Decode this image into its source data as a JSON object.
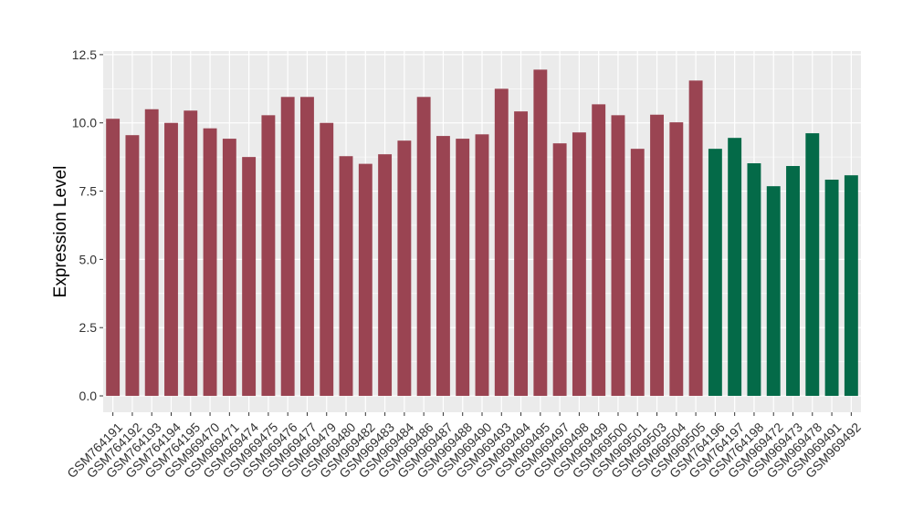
{
  "chart_data": {
    "type": "bar",
    "title": "",
    "xlabel": "",
    "ylabel": "Expression Level",
    "ylim": [
      0,
      12.5
    ],
    "yticks": [
      0.0,
      2.5,
      5.0,
      7.5,
      10.0,
      12.5
    ],
    "ytick_labels": [
      "0.0",
      "2.5",
      "5.0",
      "7.5",
      "10.0",
      "12.5"
    ],
    "grid": true,
    "legend": "none",
    "background_color": "#EBEBEB",
    "grid_color": "#FFFFFF",
    "categories": [
      "GSM764191",
      "GSM764192",
      "GSM764193",
      "GSM764194",
      "GSM764195",
      "GSM969470",
      "GSM969471",
      "GSM969474",
      "GSM969475",
      "GSM969476",
      "GSM969477",
      "GSM969479",
      "GSM969480",
      "GSM969482",
      "GSM969483",
      "GSM969484",
      "GSM969486",
      "GSM969487",
      "GSM969488",
      "GSM969490",
      "GSM969493",
      "GSM969494",
      "GSM969495",
      "GSM969497",
      "GSM969498",
      "GSM969499",
      "GSM969500",
      "GSM969501",
      "GSM969503",
      "GSM969504",
      "GSM969505",
      "GSM764196",
      "GSM764197",
      "GSM764198",
      "GSM969472",
      "GSM969473",
      "GSM969478",
      "GSM969491",
      "GSM969492"
    ],
    "values": [
      10.15,
      9.55,
      10.5,
      10.0,
      10.45,
      9.8,
      9.42,
      8.75,
      10.28,
      10.95,
      10.95,
      10.0,
      8.78,
      8.5,
      8.85,
      9.35,
      10.95,
      9.52,
      9.42,
      9.58,
      11.25,
      10.42,
      11.95,
      9.25,
      9.65,
      10.68,
      10.28,
      9.05,
      10.3,
      10.02,
      11.55,
      9.05,
      9.45,
      8.52,
      7.68,
      8.42,
      9.62,
      7.92,
      8.08
    ],
    "bar_colors": [
      "#9A4452",
      "#9A4452",
      "#9A4452",
      "#9A4452",
      "#9A4452",
      "#9A4452",
      "#9A4452",
      "#9A4452",
      "#9A4452",
      "#9A4452",
      "#9A4452",
      "#9A4452",
      "#9A4452",
      "#9A4452",
      "#9A4452",
      "#9A4452",
      "#9A4452",
      "#9A4452",
      "#9A4452",
      "#9A4452",
      "#9A4452",
      "#9A4452",
      "#9A4452",
      "#9A4452",
      "#9A4452",
      "#9A4452",
      "#9A4452",
      "#9A4452",
      "#9A4452",
      "#9A4452",
      "#9A4452",
      "#046A48",
      "#046A48",
      "#046A48",
      "#046A48",
      "#046A48",
      "#046A48",
      "#046A48",
      "#046A48"
    ]
  }
}
